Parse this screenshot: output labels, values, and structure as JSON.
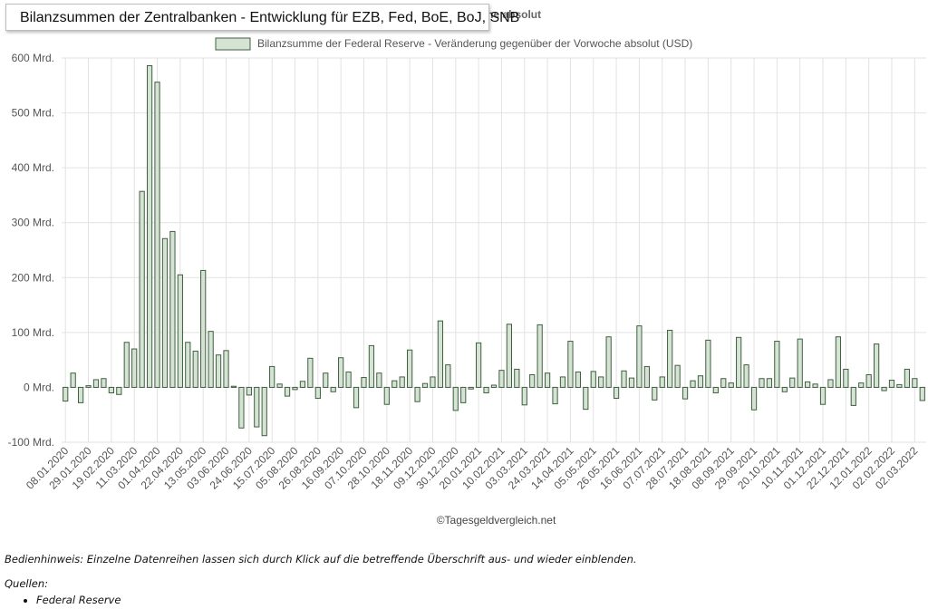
{
  "page": {
    "title": "Bilanzsummen der Zentralbanken - Entwicklung für EZB, Fed, BoE, BoJ, SNB",
    "subtitle_visible": "ng gegenüber der Vorwoche absolut",
    "watermark": "©Tagesgeldvergleich.net",
    "hint": "Bedienhinweis: Einzelne Datenreihen lassen sich durch Klick auf die betreffende Überschrift aus- und wieder einblenden.",
    "sources_label": "Quellen:",
    "sources": [
      "Federal Reserve"
    ]
  },
  "colors": {
    "bar_fill": "#d5e3d5",
    "bar_stroke": "#3f5f3f",
    "grid": "#e2e2e2",
    "axis_text": "#555555"
  },
  "chart_data": {
    "type": "bar",
    "title": "Bilanzsumme der Federal Reserve - Veränderung gegenüber der Vorwoche absolut",
    "legend": "Bilanzsumme der Federal Reserve - Veränderung gegenüber der Vorwoche absolut (USD)",
    "legend_position": "top-center",
    "grid": true,
    "ylim": [
      -100,
      600
    ],
    "yticks": [
      {
        "value": 600,
        "label": "600 Mrd."
      },
      {
        "value": 500,
        "label": "500 Mrd."
      },
      {
        "value": 400,
        "label": "400 Mrd."
      },
      {
        "value": 300,
        "label": "300 Mrd."
      },
      {
        "value": 200,
        "label": "200 Mrd."
      },
      {
        "value": 100,
        "label": "100 Mrd."
      },
      {
        "value": 0,
        "label": "0 Mrd."
      },
      {
        "value": -100,
        "label": "-100 Mrd."
      }
    ],
    "xtick_labels": [
      "08.01.2020",
      "29.01.2020",
      "19.02.2020",
      "11.03.2020",
      "01.04.2020",
      "22.04.2020",
      "13.05.2020",
      "03.06.2020",
      "24.06.2020",
      "15.07.2020",
      "05.08.2020",
      "26.08.2020",
      "16.09.2020",
      "07.10.2020",
      "28.10.2020",
      "18.11.2020",
      "09.12.2020",
      "30.12.2020",
      "20.01.2021",
      "10.02.2021",
      "03.03.2021",
      "24.03.2021",
      "14.04.2021",
      "05.05.2021",
      "26.05.2021",
      "16.06.2021",
      "07.07.2021",
      "28.07.2021",
      "18.08.2021",
      "08.09.2021",
      "29.09.2021",
      "20.10.2021",
      "10.11.2021",
      "01.12.2021",
      "22.12.2021",
      "12.01.2022",
      "02.02.2022",
      "02.03.2022"
    ],
    "series": [
      {
        "name": "Bilanzsumme der Federal Reserve - Veränderung gegenüber der Vorwoche absolut (USD)",
        "unit": "Mrd. USD",
        "values": [
          -25,
          26,
          -28,
          3,
          14,
          16,
          -10,
          -13,
          82,
          70,
          357,
          586,
          556,
          271,
          284,
          205,
          82,
          66,
          213,
          102,
          59,
          67,
          2,
          -74,
          -14,
          -72,
          -88,
          38,
          6,
          -16,
          -4,
          11,
          53,
          -20,
          26,
          -8,
          54,
          28,
          -37,
          18,
          76,
          26,
          -31,
          12,
          19,
          68,
          -26,
          7,
          19,
          121,
          41,
          -42,
          -28,
          -3,
          81,
          -10,
          4,
          31,
          115,
          33,
          -32,
          23,
          114,
          26,
          -30,
          19,
          84,
          28,
          -40,
          29,
          19,
          92,
          -20,
          30,
          17,
          112,
          38,
          -23,
          19,
          104,
          40,
          -21,
          12,
          21,
          86,
          -10,
          16,
          8,
          91,
          41,
          -41,
          16,
          16,
          84,
          -8,
          17,
          88,
          10,
          6,
          -31,
          14,
          92,
          33,
          -33,
          8,
          23,
          79,
          -6,
          13,
          5,
          33,
          16,
          -24
        ]
      }
    ]
  }
}
